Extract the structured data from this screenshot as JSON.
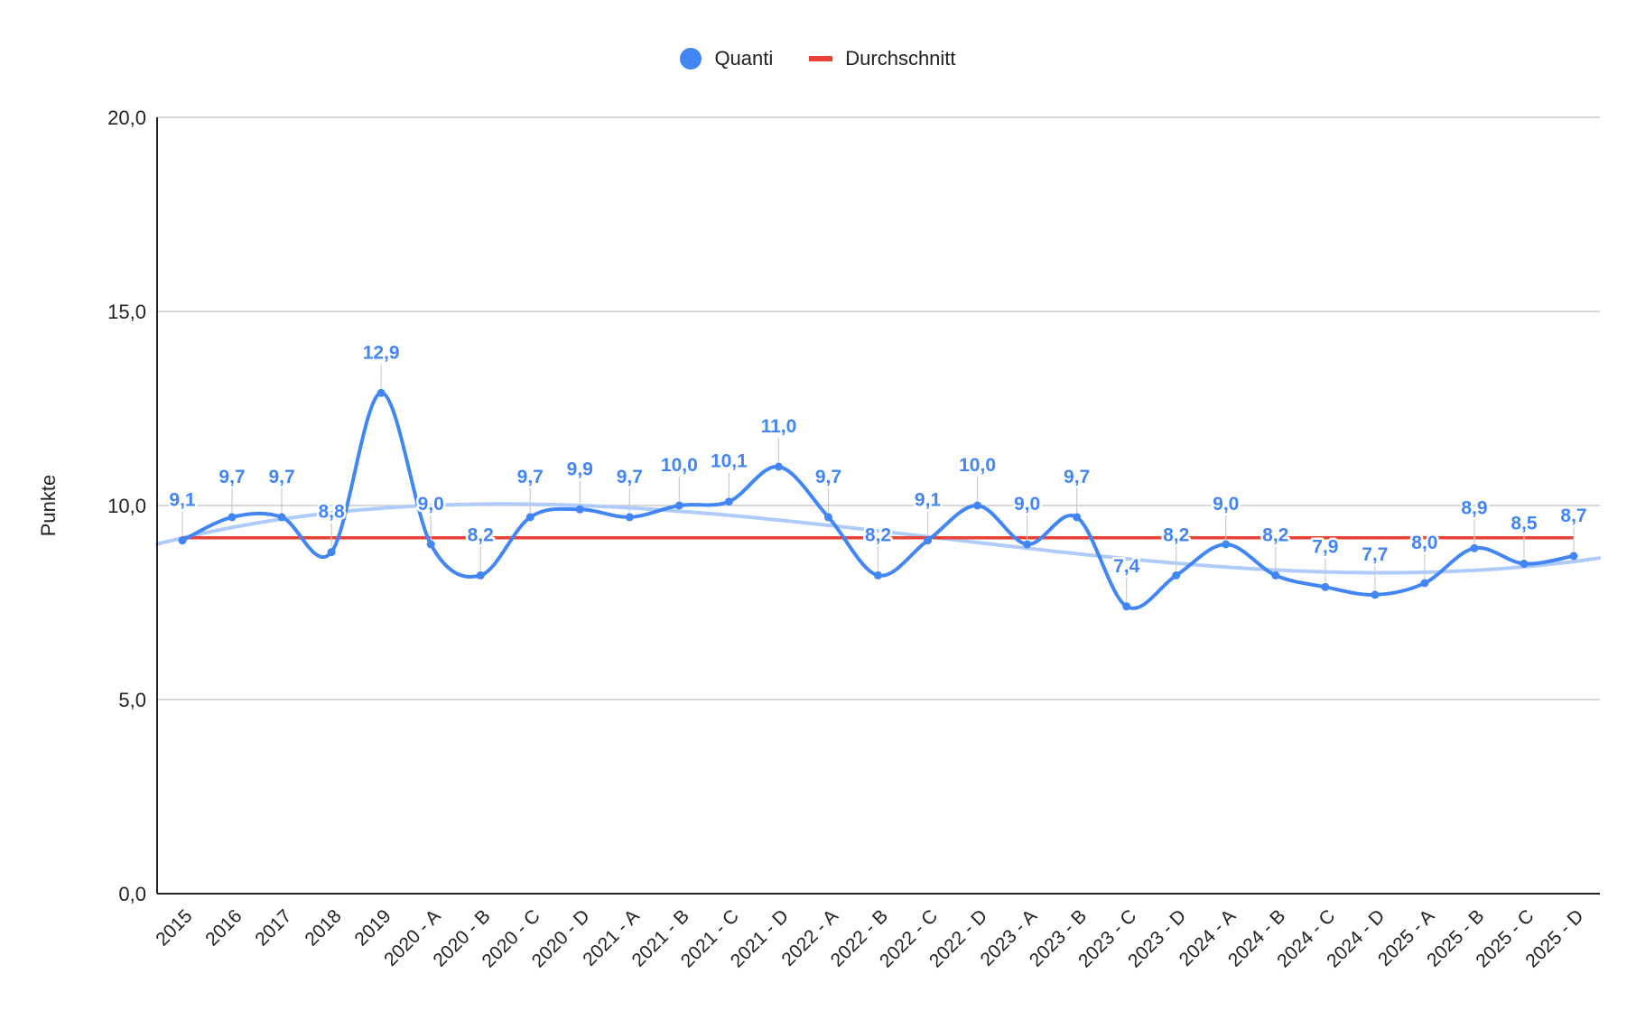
{
  "chart_data": {
    "type": "line",
    "xlabel": "",
    "ylabel": "Punkte",
    "ylim": [
      0,
      20
    ],
    "yticks": [
      "0,0",
      "5,0",
      "10,0",
      "15,0",
      "20,0"
    ],
    "ytick_values": [
      0,
      5,
      10,
      15,
      20
    ],
    "grid": true,
    "legend_position": "top",
    "categories": [
      "2015",
      "2016",
      "2017",
      "2018",
      "2019",
      "2020 - A",
      "2020 - B",
      "2020 - C",
      "2020 - D",
      "2021 - A",
      "2021 - B",
      "2021 - C",
      "2021 - D",
      "2022 - A",
      "2022 - B",
      "2022 - C",
      "2022 - D",
      "2023 - A",
      "2023 - B",
      "2023 - C",
      "2023 - D",
      "2024 - A",
      "2024 - B",
      "2024 - C",
      "2024 - D",
      "2025 - A",
      "2025 - B",
      "2025 - C",
      "2025 - D"
    ],
    "series": [
      {
        "name": "Quanti",
        "color": "#4285f4",
        "values": [
          9.1,
          9.7,
          9.7,
          8.8,
          12.9,
          9.0,
          8.2,
          9.7,
          9.9,
          9.7,
          10.0,
          10.1,
          11.0,
          9.7,
          8.2,
          9.1,
          10.0,
          9.0,
          9.7,
          7.4,
          8.2,
          9.0,
          8.2,
          7.9,
          7.7,
          8.0,
          8.9,
          8.5,
          8.7
        ],
        "data_labels": [
          "9,1",
          "9,7",
          "9,7",
          "8,8",
          "12,9",
          "9,0",
          "8,2",
          "9,7",
          "9,9",
          "9,7",
          "10,0",
          "10,1",
          "11,0",
          "9,7",
          "8,2",
          "9,1",
          "10,0",
          "9,0",
          "9,7",
          "7,4",
          "8,2",
          "9,0",
          "8,2",
          "7,9",
          "7,7",
          "8,0",
          "8,9",
          "8,5",
          "8,7"
        ]
      },
      {
        "name": "Durchschnitt",
        "color": "#ea4335",
        "values": [
          9.17,
          9.17,
          9.17,
          9.17,
          9.17,
          9.17,
          9.17,
          9.17,
          9.17,
          9.17,
          9.17,
          9.17,
          9.17,
          9.17,
          9.17,
          9.17,
          9.17,
          9.17,
          9.17,
          9.17,
          9.17,
          9.17,
          9.17,
          9.17,
          9.17,
          9.17,
          9.17,
          9.17,
          9.17
        ]
      }
    ],
    "trendline": {
      "series": "Quanti",
      "type": "polynomial",
      "color": "#aecbfa"
    }
  }
}
